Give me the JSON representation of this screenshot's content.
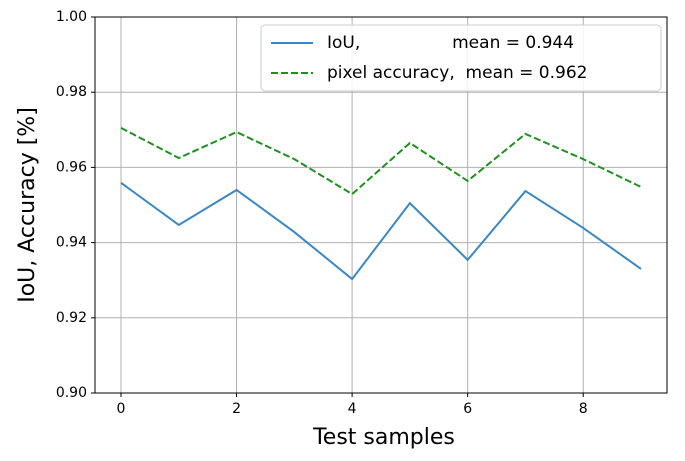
{
  "chart_data": {
    "type": "line",
    "x_label": "Test samples",
    "y_label": "IoU, Accuracy [%]",
    "x": [
      0,
      1,
      2,
      3,
      4,
      5,
      6,
      7,
      8,
      9
    ],
    "series": [
      {
        "name": "IoU,                 mean = 0.944",
        "color": "#3b87c1",
        "dash": "solid",
        "values": [
          0.9559,
          0.9447,
          0.954,
          0.9428,
          0.9303,
          0.9505,
          0.9354,
          0.9537,
          0.9439,
          0.933
        ]
      },
      {
        "name": "pixel accuracy,  mean = 0.962",
        "color": "#1f8f1f",
        "dash": "dashed",
        "values": [
          0.9705,
          0.9625,
          0.9694,
          0.9622,
          0.9529,
          0.9665,
          0.9564,
          0.9689,
          0.9622,
          0.9548
        ]
      }
    ],
    "xlim": [
      -0.45,
      9.45
    ],
    "xticks": [
      0,
      2,
      4,
      6,
      8
    ],
    "ylim": [
      0.9,
      1.0
    ],
    "yticks": [
      {
        "value": 0.9,
        "label": "0.90"
      },
      0.92,
      0.94,
      0.96,
      0.98,
      {
        "value": 1.0,
        "label": "1.00"
      }
    ],
    "grid": true,
    "legend": "upper right"
  }
}
